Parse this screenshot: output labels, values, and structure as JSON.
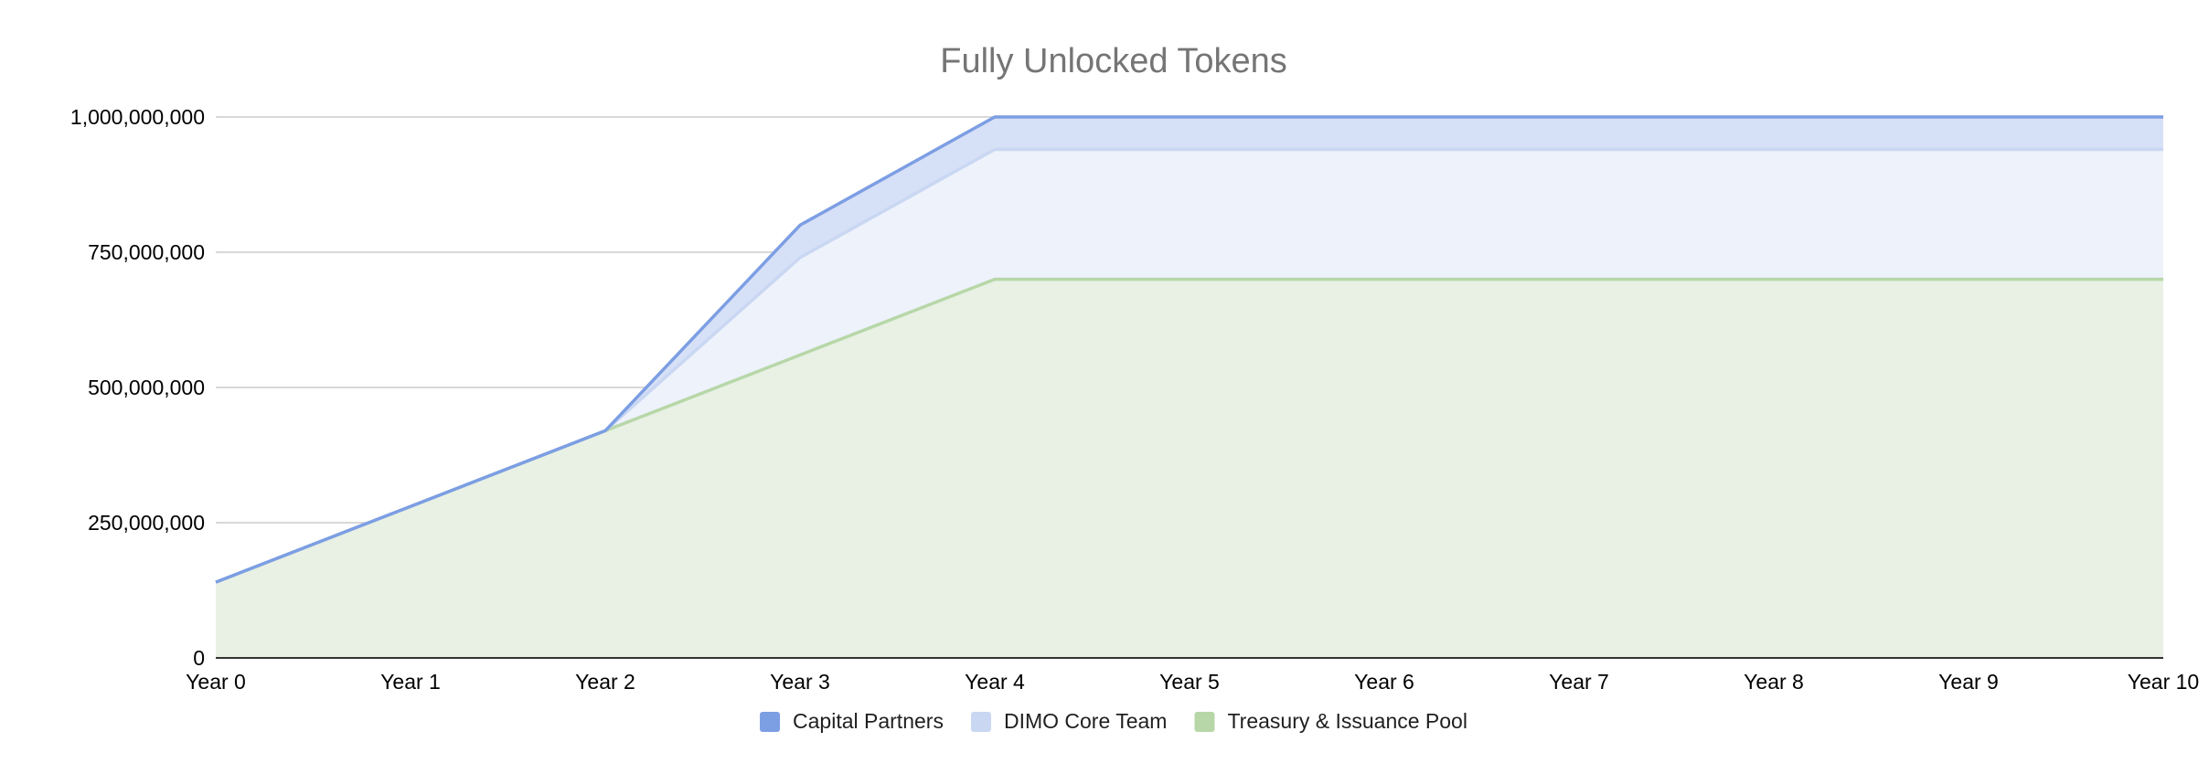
{
  "chart_data": {
    "type": "area",
    "stacked": true,
    "title": "Fully Unlocked Tokens",
    "xlabel": "",
    "ylabel": "",
    "categories": [
      "Year 0",
      "Year 1",
      "Year 2",
      "Year 3",
      "Year 4",
      "Year 5",
      "Year 6",
      "Year 7",
      "Year 8",
      "Year 9",
      "Year 10"
    ],
    "ylim": [
      0,
      1000000000
    ],
    "yticks": [
      0,
      250000000,
      500000000,
      750000000,
      1000000000
    ],
    "ytick_labels": [
      "0",
      "250,000,000",
      "500,000,000",
      "750,000,000",
      "1,000,000,000"
    ],
    "grid": true,
    "legend_position": "bottom",
    "series": [
      {
        "name": "Treasury & Issuance Pool",
        "color": "#b7d7a8",
        "fill": "#e8f1e4",
        "values": [
          140000000,
          280000000,
          420000000,
          560000000,
          700000000,
          700000000,
          700000000,
          700000000,
          700000000,
          700000000,
          700000000
        ]
      },
      {
        "name": "DIMO Core Team",
        "color": "#c9d7f2",
        "fill": "#eef2fb",
        "values": [
          0,
          0,
          0,
          180000000,
          240000000,
          240000000,
          240000000,
          240000000,
          240000000,
          240000000,
          240000000
        ]
      },
      {
        "name": "Capital Partners",
        "color": "#7c9ee3",
        "fill": "#d6e0f7",
        "values": [
          0,
          0,
          0,
          60000000,
          60000000,
          60000000,
          60000000,
          60000000,
          60000000,
          60000000,
          60000000
        ]
      }
    ],
    "legend_order": [
      "Capital Partners",
      "DIMO Core Team",
      "Treasury & Issuance Pool"
    ]
  }
}
